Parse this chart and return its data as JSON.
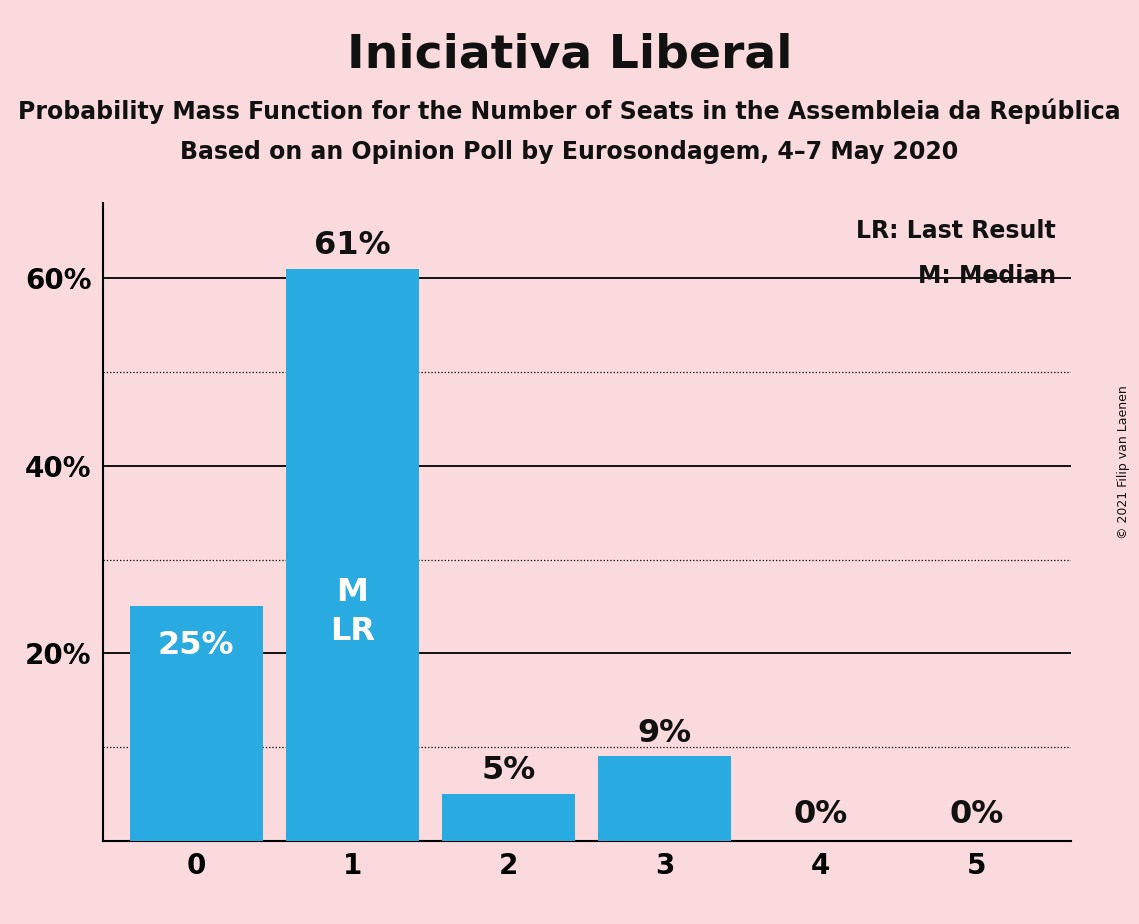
{
  "title": "Iniciativa Liberal",
  "subtitle1": "Probability Mass Function for the Number of Seats in the Assembleia da República",
  "subtitle2": "Based on an Opinion Poll by Eurosondagem, 4–7 May 2020",
  "copyright": "© 2021 Filip van Laenen",
  "categories": [
    0,
    1,
    2,
    3,
    4,
    5
  ],
  "values": [
    25,
    61,
    5,
    9,
    0,
    0
  ],
  "bar_color": "#29ABE2",
  "background_color": "#FADADD",
  "title_color": "#111111",
  "bar_label_color_inside": "#FFFFFF",
  "bar_label_color_outside": "#111111",
  "median_seat": 1,
  "last_result_seat": 1,
  "legend_lr": "LR: Last Result",
  "legend_m": "M: Median",
  "ytick_positions": [
    20,
    40,
    60
  ],
  "ytick_labels": [
    "20%",
    "40%",
    "60%"
  ],
  "dotted_grid_values": [
    10,
    30,
    50
  ],
  "solid_grid_values": [
    20,
    40,
    60
  ],
  "ylim_max": 68,
  "title_fontsize": 34,
  "subtitle_fontsize": 17,
  "bar_label_fontsize": 23,
  "axis_label_fontsize": 20,
  "legend_fontsize": 17,
  "copyright_fontsize": 9,
  "inside_threshold": 15
}
